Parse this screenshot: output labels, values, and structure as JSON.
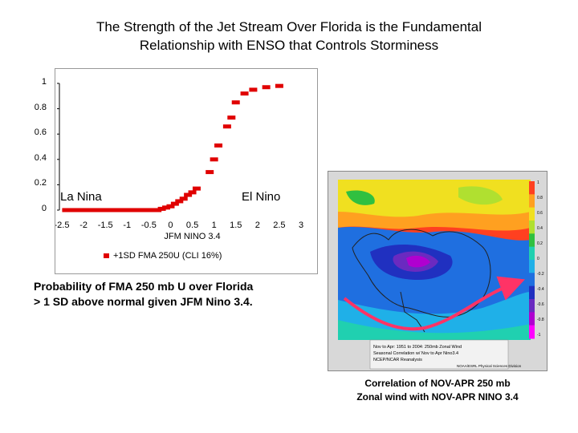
{
  "title": {
    "line1": "The Strength of the Jet Stream Over Florida is the Fundamental",
    "line2": "Relationship with ENSO that Controls Storminess"
  },
  "chart_data": {
    "type": "scatter",
    "xlabel": "JFM NINO 3.4",
    "ylabel": "",
    "xlim": [
      -2.5,
      3
    ],
    "ylim": [
      0,
      1
    ],
    "xticks": [
      "-2.5",
      "-2",
      "-1.5",
      "-1",
      "-0.5",
      "0",
      "0.5",
      "1",
      "1.5",
      "2",
      "2.5",
      "3"
    ],
    "yticks": [
      "0",
      "0.2",
      "0.4",
      "0.6",
      "0.8",
      "1"
    ],
    "annotations": [
      "La Nina",
      "El Nino"
    ],
    "legend": {
      "placement": "bottom",
      "entries": [
        "+1SD FMA 250U (CLI 16%)"
      ]
    },
    "marker_color": "#e00000",
    "series": [
      {
        "name": "+1SD FMA 250U (CLI 16%)",
        "x": [
          -2.4,
          -2.3,
          -2.2,
          -2.1,
          -2.0,
          -1.9,
          -1.8,
          -1.7,
          -1.6,
          -1.5,
          -1.4,
          -1.3,
          -1.2,
          -1.1,
          -1.0,
          -0.9,
          -0.8,
          -0.7,
          -0.6,
          -0.5,
          -0.4,
          -0.3,
          -0.2,
          -0.1,
          0.0,
          0.1,
          0.2,
          0.3,
          0.4,
          0.5,
          0.6,
          0.9,
          1.0,
          1.1,
          1.3,
          1.4,
          1.5,
          1.7,
          1.9,
          2.2,
          2.5
        ],
        "y": [
          0.0,
          0.0,
          0.0,
          0.0,
          0.0,
          0.0,
          0.0,
          0.0,
          0.0,
          0.0,
          0.0,
          0.0,
          0.0,
          0.0,
          0.0,
          0.0,
          0.0,
          0.0,
          0.0,
          0.0,
          0.0,
          0.0,
          0.01,
          0.02,
          0.03,
          0.05,
          0.07,
          0.09,
          0.12,
          0.14,
          0.17,
          0.3,
          0.4,
          0.51,
          0.66,
          0.73,
          0.85,
          0.92,
          0.95,
          0.97,
          0.98
        ]
      }
    ]
  },
  "left_caption": {
    "line1": "Probability of FMA 250 mb U over Florida",
    "line2": "> 1 SD above normal given JFM Nino 3.4."
  },
  "map": {
    "colorbar_ticks": [
      "1",
      "0.8",
      "0.6",
      "0.4",
      "0.2",
      "0",
      "-0.2",
      "-0.4",
      "-0.6",
      "-0.8",
      "-1"
    ],
    "inset_text": {
      "line1": "Nov to Apr: 1951 to 2004: 250mb Zonal Wind",
      "line2": "Seasonal Correlation w/ Nov to Apr Nino3.4",
      "line3": "NCEP/NCAR Reanalysis",
      "credit": "NOAA/ESRL Physical Sciences Division"
    },
    "colors": {
      "arrow": "#ff3366",
      "bands": [
        "#ff00ff",
        "#b000d0",
        "#6a2ac0",
        "#2030c0",
        "#1f6fe0",
        "#1fb0e8",
        "#20d0b0",
        "#30c040",
        "#b0e030",
        "#f0e020",
        "#ffa020",
        "#ff4020"
      ]
    }
  },
  "right_caption": {
    "line1": "Correlation of NOV-APR 250 mb",
    "line2": "Zonal wind with NOV-APR NINO 3.4"
  }
}
